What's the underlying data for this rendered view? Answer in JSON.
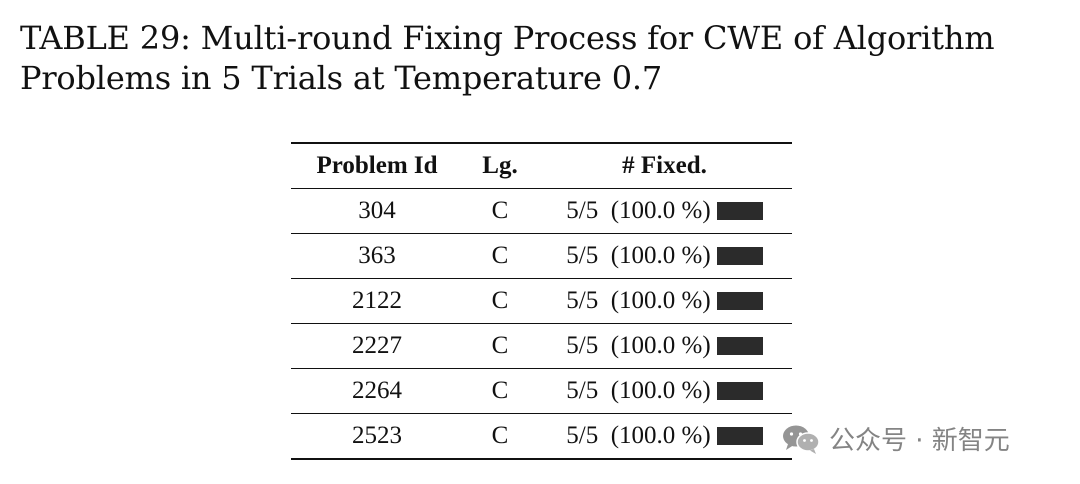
{
  "caption": {
    "line1": "TABLE 29: Multi-round Fixing Process for CWE of Algorithm",
    "line2": "Problems in 5 Trials at Temperature 0.7"
  },
  "table": {
    "headers": {
      "problem_id": "Problem Id",
      "language": "Lg.",
      "fixed": "# Fixed."
    },
    "rows": [
      {
        "problem_id": "304",
        "language": "C",
        "fixed_text": "5/5  (100.0 %)",
        "fixed_fraction": 1.0
      },
      {
        "problem_id": "363",
        "language": "C",
        "fixed_text": "5/5  (100.0 %)",
        "fixed_fraction": 1.0
      },
      {
        "problem_id": "2122",
        "language": "C",
        "fixed_text": "5/5  (100.0 %)",
        "fixed_fraction": 1.0
      },
      {
        "problem_id": "2227",
        "language": "C",
        "fixed_text": "5/5  (100.0 %)",
        "fixed_fraction": 1.0
      },
      {
        "problem_id": "2264",
        "language": "C",
        "fixed_text": "5/5  (100.0 %)",
        "fixed_fraction": 1.0
      },
      {
        "problem_id": "2523",
        "language": "C",
        "fixed_text": "5/5  (100.0 %)",
        "fixed_fraction": 1.0
      }
    ],
    "bar_color": "#2b2b2b"
  },
  "watermark": {
    "text": "公众号 · 新智元",
    "icon": "wechat-icon"
  }
}
